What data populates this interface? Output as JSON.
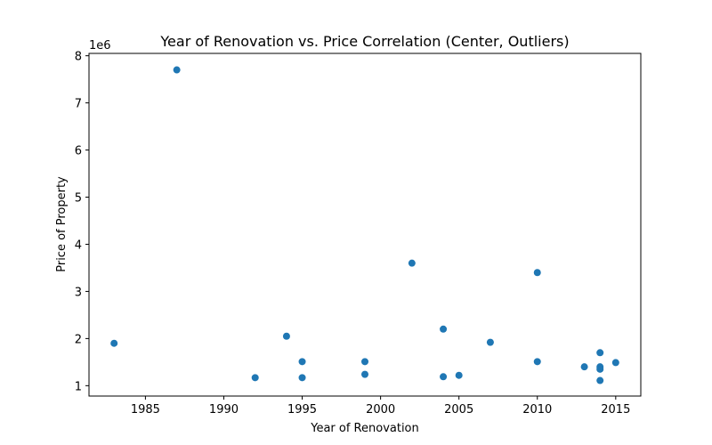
{
  "chart_data": {
    "type": "scatter",
    "title": "Year of Renovation vs. Price Correlation (Center, Outliers)",
    "xlabel": "Year of Renovation",
    "ylabel": "Price of Property",
    "y_offset_label": "1e6",
    "xlim": [
      1981.4,
      2016.6
    ],
    "ylim": [
      0.78,
      8.05
    ],
    "y_scale_multiplier": 1000000,
    "xticks": [
      1985,
      1990,
      1995,
      2000,
      2005,
      2010,
      2015
    ],
    "yticks": [
      1,
      2,
      3,
      4,
      5,
      6,
      7,
      8
    ],
    "grid": false,
    "marker_color": "#1f77b4",
    "points": [
      {
        "x": 1983,
        "y": 1.9
      },
      {
        "x": 1987,
        "y": 7.7
      },
      {
        "x": 1992,
        "y": 1.17
      },
      {
        "x": 1994,
        "y": 2.05
      },
      {
        "x": 1995,
        "y": 1.51
      },
      {
        "x": 1995,
        "y": 1.17
      },
      {
        "x": 1999,
        "y": 1.51
      },
      {
        "x": 1999,
        "y": 1.24
      },
      {
        "x": 2002,
        "y": 3.6
      },
      {
        "x": 2004,
        "y": 2.2
      },
      {
        "x": 2004,
        "y": 1.19
      },
      {
        "x": 2005,
        "y": 1.22
      },
      {
        "x": 2007,
        "y": 1.92
      },
      {
        "x": 2010,
        "y": 3.4
      },
      {
        "x": 2010,
        "y": 1.51
      },
      {
        "x": 2013,
        "y": 1.4
      },
      {
        "x": 2014,
        "y": 1.7
      },
      {
        "x": 2014,
        "y": 1.4
      },
      {
        "x": 2014,
        "y": 1.35
      },
      {
        "x": 2014,
        "y": 1.11
      },
      {
        "x": 2015,
        "y": 1.49
      }
    ]
  }
}
